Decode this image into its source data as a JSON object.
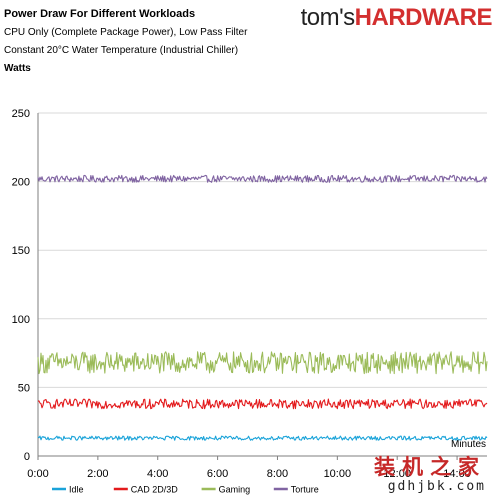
{
  "header": {
    "title": "Power Draw For Different Workloads",
    "subtitle_1": "CPU Only (Complete Package Power), Low Pass Filter",
    "subtitle_2": "Constant 20°C Water Temperature (Industrial Chiller)",
    "units": "Watts",
    "brand_prefix": "tom's",
    "brand_suffix": "HARDWARE"
  },
  "watermark": {
    "line1": "装机之家",
    "line2": "gdhjbk.com"
  },
  "colors": {
    "idle": "#1aa3d9",
    "cad": "#e31a1c",
    "gaming": "#9bbb59",
    "torture": "#8064a2",
    "axis": "#7f7f7f",
    "grid": "#d9d9d9"
  },
  "chart_data": {
    "type": "line",
    "title": "Power Draw For Different Workloads",
    "ylabel": "Watts",
    "xlabel": "Minutes",
    "ylim": [
      0,
      250
    ],
    "yticks": [
      "0",
      "50",
      "100",
      "150",
      "200",
      "250"
    ],
    "xlim_minutes": [
      0,
      15
    ],
    "xticks": [
      "0:00",
      "2:00",
      "4:00",
      "6:00",
      "8:00",
      "10:00",
      "12:00",
      "14:00"
    ],
    "grid": "horizontal",
    "legend_position": "bottom",
    "series": [
      {
        "name": "Idle",
        "mean": 13,
        "spread": 1.5,
        "color": "#1aa3d9"
      },
      {
        "name": "CAD 2D/3D",
        "mean": 38,
        "spread": 3.5,
        "color": "#e31a1c"
      },
      {
        "name": "Gaming",
        "mean": 68,
        "spread": 8,
        "color": "#9bbb59"
      },
      {
        "name": "Torture",
        "mean": 202,
        "spread": 2.5,
        "color": "#8064a2"
      }
    ]
  }
}
